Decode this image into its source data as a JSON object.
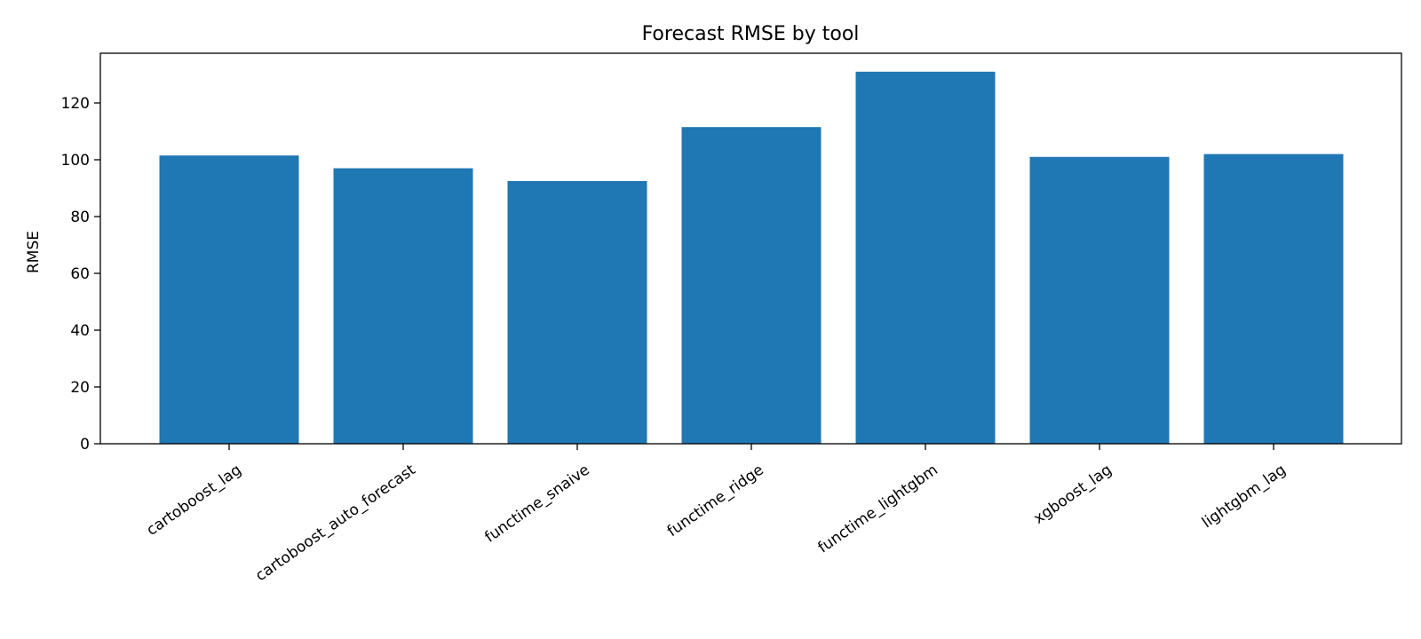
{
  "chart_data": {
    "type": "bar",
    "title": "Forecast RMSE by tool",
    "xlabel": "",
    "ylabel": "RMSE",
    "categories": [
      "cartoboost_lag",
      "cartoboost_auto_forecast",
      "functime_snaive",
      "functime_ridge",
      "functime_lightgbm",
      "xgboost_lag",
      "lightgbm_lag"
    ],
    "values": [
      101.5,
      97,
      92.5,
      111.5,
      131,
      101,
      102
    ],
    "ylim": [
      0,
      137.5
    ],
    "yticks": [
      0,
      20,
      40,
      60,
      80,
      100,
      120
    ],
    "bar_color": "#1f77b4",
    "grid": false,
    "legend": false
  }
}
